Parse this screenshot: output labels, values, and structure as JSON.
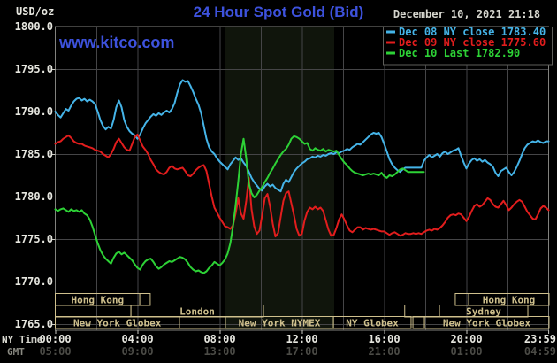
{
  "header": {
    "units": "USD/oz",
    "title": "24 Hour Spot Gold (Bid)",
    "datetime": "December 10, 2021 21:18",
    "watermark": "www.kitco.com"
  },
  "colors": {
    "background": "#000000",
    "title_blue": "#3d52dd",
    "grid": "#454547",
    "plot_border": "#82827e",
    "nymex_band": "#10150c",
    "session_khaki": "#cfc08d",
    "axis_text": "#e6e6df",
    "gmt_text": "#4b4b46",
    "date_text": "#d6d6ce",
    "dec08_cyan": "#45b4e8",
    "dec09_red": "#e21d1d",
    "dec10_green": "#2dd236"
  },
  "legend": {
    "items": [
      {
        "label": "Dec 08 NY close 1783.40",
        "color": "#45b4e8"
      },
      {
        "label": "Dec 09 NY close 1775.60",
        "color": "#e21d1d"
      },
      {
        "label": "Dec 10 Last 1782.90",
        "color": "#2dd236"
      }
    ]
  },
  "x_axis": {
    "row1_label": "NY Time",
    "row2_label": "GMT",
    "ticks": [
      {
        "ny": "00:00",
        "gmt": "05:00",
        "h": 0
      },
      {
        "ny": "04:00",
        "gmt": "09:00",
        "h": 4
      },
      {
        "ny": "08:00",
        "gmt": "13:00",
        "h": 8
      },
      {
        "ny": "12:00",
        "gmt": "17:00",
        "h": 12
      },
      {
        "ny": "16:00",
        "gmt": "21:00",
        "h": 16
      },
      {
        "ny": "20:00",
        "gmt": "01:00",
        "h": 20
      },
      {
        "ny": "23:59",
        "gmt": "04:59",
        "h": 23.983
      }
    ]
  },
  "y_axis": {
    "ticks": [
      1800,
      1795,
      1790,
      1785,
      1780,
      1775,
      1770,
      1765
    ]
  },
  "sessions": {
    "rows": [
      [
        {
          "label": "Hong Kong",
          "h1": 0,
          "h2": 4.11
        },
        {
          "label": "",
          "h1": 4.11,
          "h2": 4.62
        },
        {
          "label": "",
          "h1": 19.46,
          "h2": 20.11
        },
        {
          "label": "Hong Kong",
          "h1": 20.11,
          "h2": 24.02
        }
      ],
      [
        {
          "label": "",
          "h1": 0,
          "h2": 3.68
        },
        {
          "label": "London",
          "h1": 3.68,
          "h2": 10.13
        },
        {
          "label": "",
          "h1": 17.0,
          "h2": 18.69
        },
        {
          "label": "Sydney",
          "h1": 18.69,
          "h2": 22.99
        }
      ],
      [
        {
          "label": "New York Globex",
          "h1": 0,
          "h2": 6.04
        },
        {
          "label": "",
          "h1": 6.04,
          "h2": 8.28
        },
        {
          "label": "New York NYMEX",
          "h1": 8.28,
          "h2": 13.53
        },
        {
          "label": "NY Globex",
          "h1": 13.53,
          "h2": 17.31
        },
        {
          "label": "",
          "h1": 17.4,
          "h2": 17.96
        },
        {
          "label": "New York Globex",
          "h1": 17.96,
          "h2": 24.02
        }
      ]
    ]
  },
  "chart_data": {
    "type": "line",
    "title": "24 Hour Spot Gold (Bid)",
    "xlabel": "NY Time (hours 00:00-23:59)",
    "ylabel": "USD/oz",
    "ylim": [
      1765.0,
      1800.0
    ],
    "xlim_hours": [
      0,
      24
    ],
    "grid": true,
    "legend_position": "top-right",
    "highlight_band_hours": [
      8.28,
      13.57
    ],
    "series": [
      {
        "name": "Dec 08 NY close 1783.40",
        "color": "#45b4e8",
        "x_start_hours": 0,
        "x_step_hours": 0.129032,
        "values": [
          1790.0,
          1789.6,
          1789.3,
          1789.8,
          1790.3,
          1790.1,
          1790.7,
          1791.2,
          1791.5,
          1791.6,
          1791.3,
          1791.5,
          1791.2,
          1791.4,
          1791.2,
          1790.9,
          1790.0,
          1789.0,
          1788.3,
          1787.9,
          1788.2,
          1788.0,
          1789.0,
          1790.5,
          1791.3,
          1790.5,
          1789.0,
          1788.2,
          1787.7,
          1787.4,
          1787.2,
          1786.8,
          1787.3,
          1788.0,
          1788.6,
          1789.0,
          1789.4,
          1789.7,
          1789.5,
          1789.8,
          1789.6,
          1789.9,
          1790.1,
          1789.9,
          1790.3,
          1791.0,
          1792.2,
          1793.2,
          1793.7,
          1793.5,
          1793.6,
          1793.0,
          1792.3,
          1791.5,
          1790.8,
          1789.8,
          1788.3,
          1786.8,
          1785.8,
          1785.3,
          1785.0,
          1784.5,
          1784.1,
          1783.8,
          1783.5,
          1783.2,
          1783.8,
          1784.2,
          1784.6,
          1784.3,
          1784.5,
          1784.0,
          1783.6,
          1782.9,
          1782.2,
          1781.7,
          1781.3,
          1780.9,
          1780.7,
          1781.2,
          1781.5,
          1781.2,
          1781.4,
          1781.0,
          1780.8,
          1780.6,
          1781.5,
          1782.0,
          1781.7,
          1782.3,
          1782.9,
          1783.3,
          1783.6,
          1783.9,
          1784.1,
          1784.4,
          1784.5,
          1784.7,
          1784.6,
          1784.8,
          1784.7,
          1784.9,
          1784.8,
          1785.0,
          1785.1,
          1785.0,
          1785.2,
          1785.1,
          1785.3,
          1785.4,
          1785.6,
          1785.5,
          1785.8,
          1786.0,
          1786.2,
          1786.1,
          1786.4,
          1786.7,
          1787.0,
          1787.3,
          1787.5,
          1787.4,
          1787.5,
          1787.0,
          1786.2,
          1785.3,
          1784.4,
          1783.8,
          1783.4,
          1783.1,
          1782.9,
          1783.2,
          1783.4,
          1783.4,
          1783.4,
          1783.4,
          1783.4,
          1783.4,
          1783.4,
          1784.2,
          1784.6,
          1784.9,
          1784.6,
          1784.8,
          1785.0,
          1784.7,
          1785.1,
          1785.3,
          1785.0,
          1785.2,
          1785.4,
          1785.5,
          1785.7,
          1784.8,
          1784.0,
          1783.3,
          1783.9,
          1784.3,
          1784.5,
          1784.2,
          1784.4,
          1784.1,
          1784.3,
          1784.0,
          1783.8,
          1783.5,
          1782.8,
          1782.4,
          1783.0,
          1783.2,
          1783.4,
          1782.9,
          1782.5,
          1782.9,
          1783.5,
          1784.2,
          1785.0,
          1785.7,
          1786.1,
          1786.3,
          1786.5,
          1786.4,
          1786.6,
          1786.4,
          1786.3,
          1786.5,
          1786.5
        ]
      },
      {
        "name": "Dec 09 NY close 1775.60",
        "color": "#e21d1d",
        "x_start_hours": 0,
        "x_step_hours": 0.129032,
        "values": [
          1786.2,
          1786.4,
          1786.5,
          1786.8,
          1787.0,
          1787.2,
          1786.9,
          1786.5,
          1786.3,
          1786.2,
          1786.2,
          1786.0,
          1785.9,
          1785.8,
          1785.7,
          1785.5,
          1785.4,
          1785.3,
          1785.0,
          1784.8,
          1784.6,
          1785.0,
          1785.6,
          1786.4,
          1786.8,
          1786.3,
          1785.8,
          1785.5,
          1785.4,
          1786.2,
          1787.0,
          1787.3,
          1786.6,
          1785.9,
          1785.5,
          1785.0,
          1784.3,
          1783.8,
          1783.2,
          1782.9,
          1782.7,
          1782.6,
          1782.9,
          1783.4,
          1783.6,
          1783.3,
          1783.2,
          1783.3,
          1783.4,
          1783.0,
          1782.5,
          1782.4,
          1782.7,
          1783.1,
          1783.4,
          1783.6,
          1783.7,
          1783.0,
          1781.5,
          1780.0,
          1778.7,
          1778.1,
          1777.5,
          1777.0,
          1776.5,
          1776.4,
          1776.2,
          1776.6,
          1778.0,
          1779.8,
          1778.0,
          1777.4,
          1779.5,
          1782.2,
          1778.5,
          1776.5,
          1775.6,
          1776.0,
          1777.8,
          1779.8,
          1780.3,
          1778.8,
          1776.8,
          1775.3,
          1775.7,
          1777.6,
          1779.5,
          1780.4,
          1780.6,
          1779.2,
          1777.8,
          1776.2,
          1775.4,
          1775.6,
          1777.2,
          1778.2,
          1778.7,
          1778.5,
          1778.8,
          1778.5,
          1778.7,
          1778.3,
          1777.2,
          1776.1,
          1775.4,
          1775.5,
          1776.3,
          1777.3,
          1777.9,
          1777.3,
          1776.6,
          1776.0,
          1775.8,
          1776.1,
          1776.4,
          1776.4,
          1776.1,
          1776.3,
          1776.2,
          1776.1,
          1776.2,
          1776.1,
          1776.0,
          1775.9,
          1775.9,
          1775.7,
          1775.5,
          1775.7,
          1775.8,
          1775.6,
          1775.4,
          1775.5,
          1775.7,
          1775.6,
          1775.6,
          1775.7,
          1775.6,
          1775.7,
          1775.6,
          1775.8,
          1776.0,
          1776.1,
          1776.0,
          1776.2,
          1776.1,
          1776.3,
          1776.6,
          1777.0,
          1777.5,
          1777.8,
          1777.9,
          1777.8,
          1778.0,
          1777.9,
          1777.5,
          1777.1,
          1777.6,
          1778.3,
          1778.9,
          1779.1,
          1778.8,
          1779.0,
          1779.4,
          1779.8,
          1779.6,
          1779.1,
          1778.8,
          1778.7,
          1779.1,
          1779.5,
          1779.0,
          1778.4,
          1778.7,
          1779.1,
          1779.4,
          1779.6,
          1779.4,
          1778.8,
          1778.2,
          1777.8,
          1777.4,
          1777.3,
          1777.9,
          1778.6,
          1778.9,
          1778.7,
          1778.4
        ]
      },
      {
        "name": "Dec 10 Last 1782.90",
        "color": "#2dd236",
        "x_start_hours": 0,
        "x_step_hours": 0.129032,
        "values": [
          1778.5,
          1778.3,
          1778.5,
          1778.6,
          1778.4,
          1778.2,
          1778.5,
          1778.3,
          1778.4,
          1778.2,
          1778.4,
          1778.0,
          1777.8,
          1777.3,
          1776.5,
          1775.5,
          1774.5,
          1773.7,
          1773.1,
          1772.7,
          1772.4,
          1772.1,
          1772.8,
          1773.3,
          1773.5,
          1773.2,
          1773.4,
          1773.1,
          1772.8,
          1772.5,
          1772.0,
          1771.6,
          1771.4,
          1772.0,
          1772.4,
          1772.6,
          1772.7,
          1772.3,
          1771.8,
          1771.5,
          1771.7,
          1772.0,
          1772.2,
          1772.4,
          1772.3,
          1772.5,
          1772.7,
          1772.9,
          1772.8,
          1772.6,
          1772.2,
          1771.7,
          1771.4,
          1771.2,
          1771.3,
          1771.1,
          1771.0,
          1771.2,
          1771.6,
          1771.9,
          1772.3,
          1772.1,
          1771.9,
          1772.2,
          1772.6,
          1773.3,
          1774.5,
          1776.5,
          1779.0,
          1781.8,
          1785.0,
          1786.8,
          1784.5,
          1781.5,
          1780.4,
          1779.9,
          1780.2,
          1780.7,
          1781.1,
          1781.7,
          1782.2,
          1782.8,
          1783.3,
          1783.9,
          1784.4,
          1784.9,
          1785.3,
          1785.6,
          1786.1,
          1786.8,
          1787.1,
          1787.0,
          1786.8,
          1786.5,
          1786.2,
          1786.3,
          1785.6,
          1785.4,
          1785.7,
          1785.5,
          1785.4,
          1785.6,
          1785.3,
          1785.5,
          1785.4,
          1785.3,
          1785.4,
          1784.9,
          1784.4,
          1784.0,
          1783.7,
          1783.3,
          1783.0,
          1782.8,
          1782.7,
          1782.6,
          1782.5,
          1782.6,
          1782.7,
          1782.6,
          1782.7,
          1782.6,
          1782.5,
          1782.8,
          1782.4,
          1782.2,
          1782.5,
          1782.4,
          1782.6,
          1782.9,
          1783.2,
          1783.3,
          1783.1,
          1782.9,
          1782.9,
          1782.9,
          1782.9,
          1782.9,
          1782.9,
          1782.9
        ]
      }
    ]
  }
}
